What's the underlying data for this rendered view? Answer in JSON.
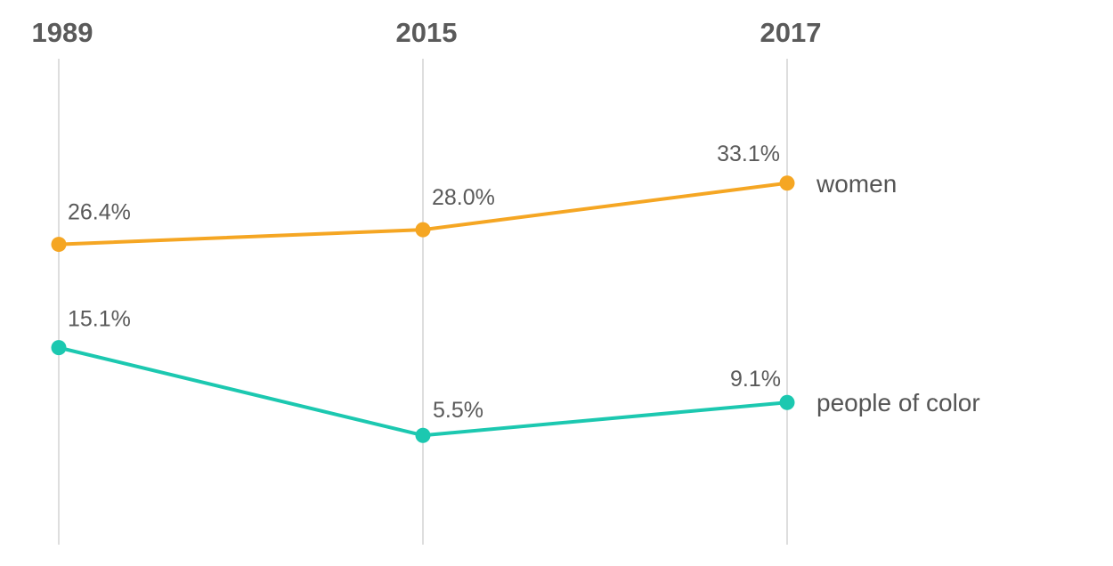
{
  "chart_data": {
    "type": "line",
    "categories": [
      "1989",
      "2015",
      "2017"
    ],
    "series": [
      {
        "name": "women",
        "values": [
          26.4,
          28.0,
          33.1
        ],
        "labels": [
          "26.4%",
          "28.0%",
          "33.1%"
        ],
        "color": "#f5a623"
      },
      {
        "name": "people of color",
        "values": [
          15.1,
          5.5,
          9.1
        ],
        "labels": [
          "15.1%",
          "5.5%",
          "9.1%"
        ],
        "color": "#1cc8b0"
      }
    ],
    "title": "",
    "xlabel": "",
    "ylabel": "",
    "grid": "vertical lines at each year"
  }
}
